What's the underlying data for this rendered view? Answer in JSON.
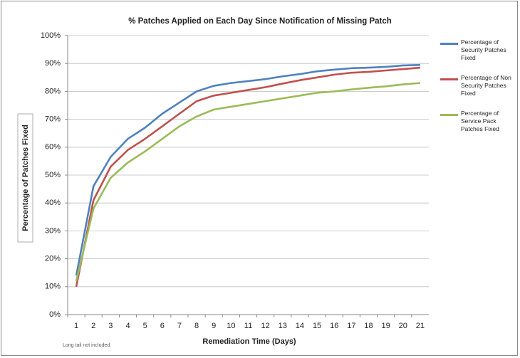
{
  "chart_data": {
    "type": "line",
    "title": "% Patches Applied on Each Day Since Notification of Missing Patch",
    "x_label": "Remediation Time (Days)",
    "y_label": "Percentage of Patches Fixed",
    "annotation": "Long tail not included.",
    "categories": [
      "1",
      "2",
      "3",
      "4",
      "5",
      "6",
      "7",
      "8",
      "9",
      "10",
      "11",
      "12",
      "13",
      "14",
      "15",
      "16",
      "17",
      "18",
      "19",
      "20",
      "21"
    ],
    "series": [
      {
        "name": "Percentage of Security Patches Fixed",
        "color": "#4f81bd",
        "values": [
          14,
          46,
          56.5,
          63,
          67,
          72,
          76,
          80,
          82,
          83,
          83.7,
          84.4,
          85.4,
          86.2,
          87.2,
          87.8,
          88.3,
          88.5,
          88.8,
          89.3,
          89.5
        ]
      },
      {
        "name": "Percentage of Non Security Patches Fixed",
        "color": "#c0504d",
        "values": [
          10,
          41,
          53,
          59,
          63,
          67.5,
          72,
          76.5,
          78.5,
          79.5,
          80.5,
          81.5,
          82.8,
          84,
          85,
          86,
          86.7,
          87,
          87.5,
          88,
          88.5
        ]
      },
      {
        "name": "Percentage of Service Pack Patches Fixed",
        "color": "#9bbb59",
        "values": [
          12,
          38,
          49,
          54.5,
          58.5,
          63,
          67.5,
          71,
          73.5,
          74.5,
          75.5,
          76.5,
          77.5,
          78.5,
          79.5,
          80,
          80.7,
          81.3,
          81.8,
          82.5,
          83
        ]
      }
    ],
    "ylim": [
      0,
      100
    ],
    "yticks": [
      {
        "value": 0,
        "label": "0%"
      },
      {
        "value": 10,
        "label": "10%"
      },
      {
        "value": 20,
        "label": "20%"
      },
      {
        "value": 30,
        "label": "30%"
      },
      {
        "value": 40,
        "label": "40%"
      },
      {
        "value": 50,
        "label": "50%"
      },
      {
        "value": 60,
        "label": "60%"
      },
      {
        "value": 70,
        "label": "70%"
      },
      {
        "value": 80,
        "label": "80%"
      },
      {
        "value": 90,
        "label": "90%"
      },
      {
        "value": 100,
        "label": "100%"
      }
    ],
    "grid": true,
    "legend": "right"
  }
}
